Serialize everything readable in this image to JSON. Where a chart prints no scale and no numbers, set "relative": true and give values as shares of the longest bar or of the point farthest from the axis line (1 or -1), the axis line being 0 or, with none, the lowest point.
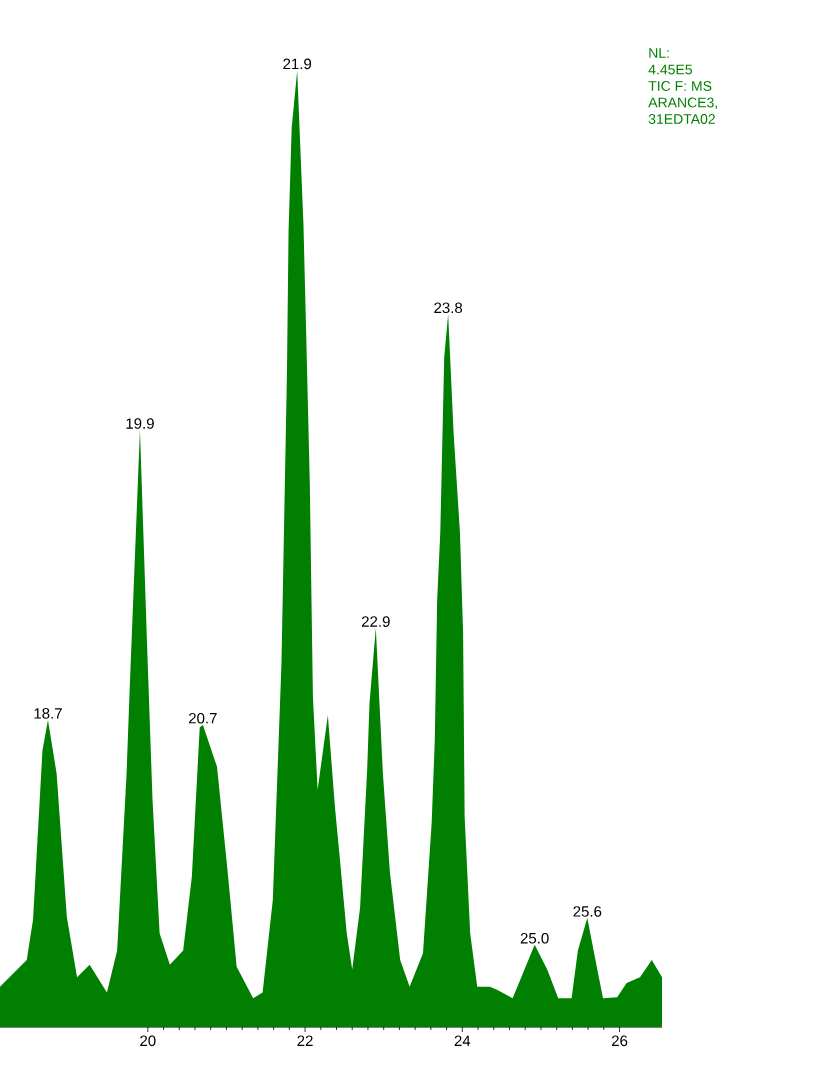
{
  "chart_data": {
    "type": "area",
    "relative": true,
    "xlim": [
      18.12,
      26.54
    ],
    "xticks": [
      20,
      22,
      24,
      26
    ],
    "x": [
      18.12,
      18.46,
      18.54,
      18.66,
      18.73,
      18.84,
      18.97,
      19.1,
      19.26,
      19.48,
      19.61,
      19.73,
      19.77,
      19.9,
      19.99,
      20.06,
      20.15,
      20.28,
      20.45,
      20.56,
      20.66,
      20.7,
      20.88,
      21.01,
      21.13,
      21.34,
      21.46,
      21.59,
      21.7,
      21.77,
      21.79,
      21.83,
      21.9,
      21.98,
      22.02,
      22.06,
      22.1,
      22.16,
      22.29,
      22.38,
      22.44,
      22.53,
      22.6,
      22.7,
      22.79,
      22.82,
      22.9,
      22.99,
      23.08,
      23.21,
      23.33,
      23.5,
      23.61,
      23.65,
      23.68,
      23.72,
      23.77,
      23.82,
      23.89,
      23.97,
      24.01,
      24.03,
      24.1,
      24.19,
      24.35,
      24.44,
      24.64,
      24.77,
      24.92,
      25.08,
      25.22,
      25.39,
      25.47,
      25.59,
      25.71,
      25.79,
      25.97,
      26.09,
      26.26,
      26.41,
      26.54
    ],
    "series": [
      {
        "color": "#007f00",
        "values": [
          0.042,
          0.07,
          0.112,
          0.289,
          0.321,
          0.265,
          0.115,
          0.052,
          0.065,
          0.036,
          0.08,
          0.265,
          0.355,
          0.624,
          0.401,
          0.237,
          0.098,
          0.065,
          0.08,
          0.157,
          0.313,
          0.316,
          0.272,
          0.167,
          0.063,
          0.03,
          0.036,
          0.133,
          0.38,
          0.685,
          0.831,
          0.94,
          1,
          0.838,
          0.705,
          0.569,
          0.345,
          0.248,
          0.326,
          0.23,
          0.178,
          0.098,
          0.06,
          0.125,
          0.269,
          0.339,
          0.417,
          0.265,
          0.161,
          0.07,
          0.042,
          0.077,
          0.213,
          0.3,
          0.446,
          0.517,
          0.7,
          0.745,
          0.62,
          0.517,
          0.412,
          0.219,
          0.098,
          0.042,
          0.042,
          0.039,
          0.03,
          0.056,
          0.086,
          0.06,
          0.03,
          0.03,
          0.08,
          0.114,
          0.063,
          0.03,
          0.031,
          0.046,
          0.052,
          0.07,
          0.052
        ]
      }
    ],
    "annotations": [
      {
        "text": "18.7",
        "x": 18.73,
        "y": 0.321
      },
      {
        "text": "19.9",
        "x": 19.9,
        "y": 0.624
      },
      {
        "text": "20.7",
        "x": 20.7,
        "y": 0.316
      },
      {
        "text": "21.9",
        "x": 21.9,
        "y": 1
      },
      {
        "text": "22.9",
        "x": 22.9,
        "y": 0.417
      },
      {
        "text": "23.8",
        "x": 23.82,
        "y": 0.745
      },
      {
        "text": "25.0",
        "x": 24.92,
        "y": 0.086
      },
      {
        "text": "25.6",
        "x": 25.59,
        "y": 0.114
      },
      "NL:",
      "4.45E5",
      "TIC F:   MS",
      "ARANCE3,",
      "31EDTA02"
    ]
  }
}
